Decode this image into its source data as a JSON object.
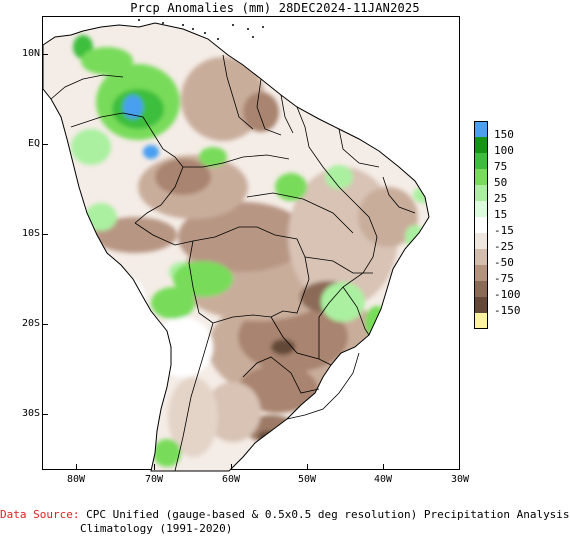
{
  "title": "Prcp Anomalies (mm) 28DEC2024-11JAN2025",
  "axes": {
    "lat_labels": [
      "10N",
      "EQ",
      "10S",
      "20S",
      "30S"
    ],
    "lon_labels": [
      "80W",
      "70W",
      "60W",
      "50W",
      "40W",
      "30W"
    ]
  },
  "legend": {
    "labels": [
      "150",
      "100",
      "75",
      "50",
      "25",
      "15",
      "-15",
      "-25",
      "-50",
      "-75",
      "-100",
      "-150"
    ],
    "colors": [
      "#4a9ff0",
      "#149614",
      "#3cbe3c",
      "#78dc5a",
      "#aaf0a0",
      "#dcfadc",
      "#ffffff",
      "#f0e6e0",
      "#d2bcae",
      "#b4927e",
      "#8c6a58",
      "#644838",
      "#fff5a0"
    ]
  },
  "footer": {
    "source_label": "Data Source:",
    "source_text": " CPC Unified (gauge-based & 0.5x0.5 deg resolution) Precipitation Analysis",
    "climatology": "Climatology (1991-2020)"
  }
}
